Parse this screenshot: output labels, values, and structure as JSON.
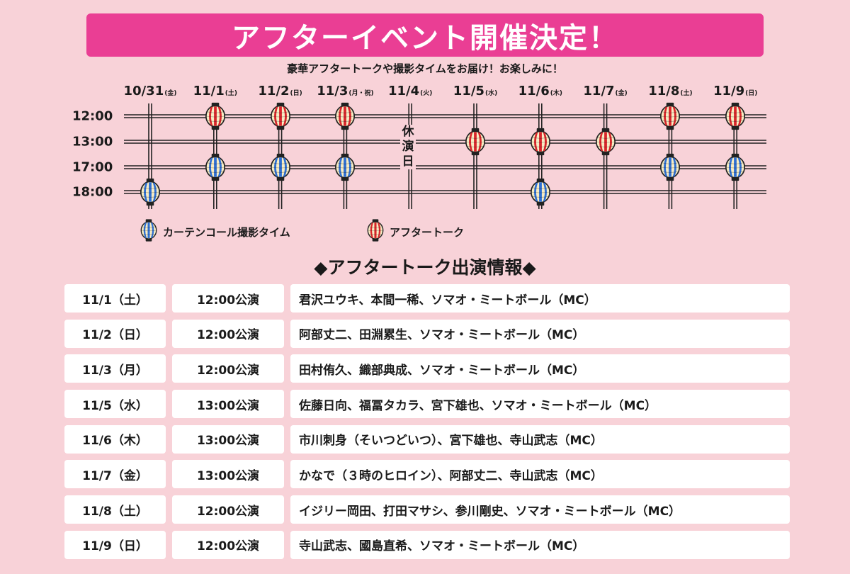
{
  "banner": {
    "title": "アフターイベント開催決定！"
  },
  "subtitle": "豪華アフタートークや撮影タイムをお届け！お楽しみに！",
  "schedule": {
    "dates": [
      {
        "date": "10/31",
        "dow": "(金)"
      },
      {
        "date": "11/1",
        "dow": "(土)"
      },
      {
        "date": "11/2",
        "dow": "(日)"
      },
      {
        "date": "11/3",
        "dow": "(月・祝)"
      },
      {
        "date": "11/4",
        "dow": "(火)"
      },
      {
        "date": "11/5",
        "dow": "(水)"
      },
      {
        "date": "11/6",
        "dow": "(木)"
      },
      {
        "date": "11/7",
        "dow": "(金)"
      },
      {
        "date": "11/8",
        "dow": "(土)"
      },
      {
        "date": "11/9",
        "dow": "(日)"
      }
    ],
    "times": [
      "12:00",
      "13:00",
      "17:00",
      "18:00"
    ],
    "holiday_label": "休演日",
    "events": [
      {
        "date": "10/31",
        "time": "18:00",
        "type": "curtain"
      },
      {
        "date": "11/1",
        "time": "12:00",
        "type": "talk"
      },
      {
        "date": "11/1",
        "time": "17:00",
        "type": "curtain"
      },
      {
        "date": "11/2",
        "time": "12:00",
        "type": "talk"
      },
      {
        "date": "11/2",
        "time": "17:00",
        "type": "curtain"
      },
      {
        "date": "11/3",
        "time": "12:00",
        "type": "talk"
      },
      {
        "date": "11/3",
        "time": "17:00",
        "type": "curtain"
      },
      {
        "date": "11/5",
        "time": "13:00",
        "type": "talk"
      },
      {
        "date": "11/6",
        "time": "13:00",
        "type": "talk"
      },
      {
        "date": "11/6",
        "time": "18:00",
        "type": "curtain"
      },
      {
        "date": "11/7",
        "time": "13:00",
        "type": "talk"
      },
      {
        "date": "11/8",
        "time": "12:00",
        "type": "talk"
      },
      {
        "date": "11/8",
        "time": "17:00",
        "type": "curtain"
      },
      {
        "date": "11/9",
        "time": "12:00",
        "type": "talk"
      },
      {
        "date": "11/9",
        "time": "17:00",
        "type": "curtain"
      }
    ]
  },
  "legend": {
    "curtain": "カーテンコール撮影タイム",
    "talk": "アフタートーク"
  },
  "colors": {
    "banner": "#ea3e94",
    "background": "#f8d2d8",
    "talk_lantern": "#d8262b",
    "curtain_lantern": "#2f6fd2",
    "lantern_cream": "#f7ecc4"
  },
  "section_title": "◆アフタートーク出演情報◆",
  "talk_info": [
    {
      "date": "11/1（土）",
      "time": "12:00公演",
      "cast": "君沢ユウキ、本間一稀、ソマオ・ミートボール（MC）"
    },
    {
      "date": "11/2（日）",
      "time": "12:00公演",
      "cast": "阿部丈二、田淵累生、ソマオ・ミートボール（MC）"
    },
    {
      "date": "11/3（月）",
      "time": "12:00公演",
      "cast": "田村侑久、織部典成、ソマオ・ミートボール（MC）"
    },
    {
      "date": "11/5（水）",
      "time": "13:00公演",
      "cast": "佐藤日向、福冨タカラ、宮下雄也、ソマオ・ミートボール（MC）"
    },
    {
      "date": "11/6（木）",
      "time": "13:00公演",
      "cast": "市川刺身（そいつどいつ）、宮下雄也、寺山武志（MC）"
    },
    {
      "date": "11/7（金）",
      "time": "13:00公演",
      "cast": "かなで（３時のヒロイン）、阿部丈二、寺山武志（MC）"
    },
    {
      "date": "11/8（土）",
      "time": "12:00公演",
      "cast": "イジリー岡田、打田マサシ、参川剛史、ソマオ・ミートボール（MC）"
    },
    {
      "date": "11/9（日）",
      "time": "12:00公演",
      "cast": "寺山武志、國島直希、ソマオ・ミートボール（MC）"
    }
  ]
}
